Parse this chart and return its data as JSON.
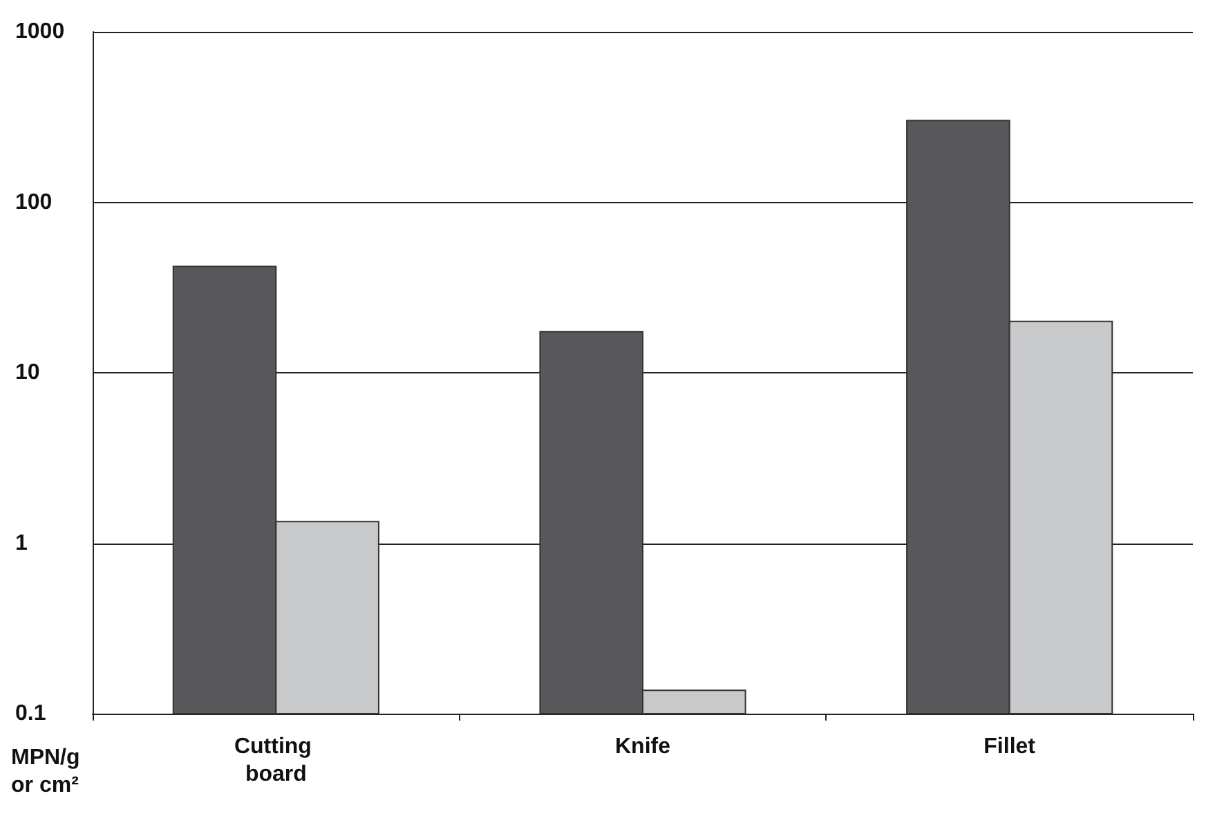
{
  "chart_data": {
    "type": "bar",
    "ylabel": "MPN/g or cm²",
    "categories": [
      "Cutting board",
      "Knife",
      "Fillet"
    ],
    "series": [
      {
        "color": "#58585a",
        "values": [
          42,
          17.4,
          302
        ]
      },
      {
        "color": "#c8c9cb",
        "values": [
          1.34,
          0.137,
          20
        ]
      }
    ],
    "log": true,
    "ylim": [
      0.1,
      1000
    ],
    "yticks": [
      0.1,
      1,
      10,
      100,
      1000
    ],
    "grid": "y"
  }
}
